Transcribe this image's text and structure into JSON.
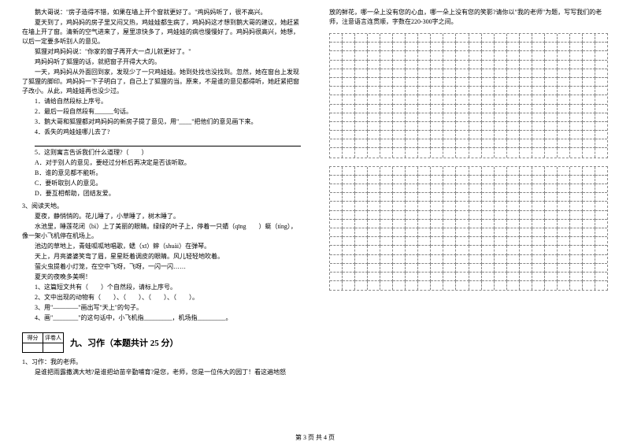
{
  "left": {
    "story": [
      "鹅大哥说：\"房子造得不错，如果在墙上开个窗就更好了。\"鸡妈妈听了，很不高兴。",
      "夏天到了，鸡妈妈的房子里又闷又热，鸡娃娃都生病了，鸡妈妈这才想到鹅大哥的建议，她赶紧在墙上开了窗。清新的空气进来了，屋里凉快多了，鸡娃娃的病也慢慢好了。鸡妈妈很高兴，她想，以后一定要多听别人的意见。",
      "狐狸对鸡妈妈说：\"你家的窗子再开大一点儿就更好了。\"",
      "鸡妈妈听了狐狸的话，就把窗子开得大大的。",
      "一天，鸡妈妈从外面回到家，发现少了一只鸡娃娃。她到处找也没找到。忽然，她在窗台上发现了狐狸的脚印。鸡妈妈一下子明白了，自己上了狐狸的当。原来，不是谁的意见都得听，她赶紧把窗子改小。从此，鸡娃娃再也没少过。"
    ],
    "questions1": [
      "1．请给自然段标上序号。",
      "2．最后一段自然段有______句话。",
      "3．鹅大哥和狐狸都对鸡妈妈的新房子提了意见，用\"____\"把他们的意见画下来。",
      "4．丢失的鸡娃娃哪儿去了?"
    ],
    "q5": "5．这则寓言告诉我们什么道理?（　　）",
    "options": [
      "A．对于别人的意见，要经过分析后再决定是否该听取。",
      "B．谁的意见都不能听。",
      "C．要听取别人的意见。",
      "D．要互相帮助，团结友爱。"
    ],
    "reading2_title": "3、阅读天地。",
    "reading2": [
      "夏夜，静悄悄的。花儿睡了，小草睡了，树木睡了。",
      "水池里，睡莲花闭（bì）上了美丽的眼睛。绿绿的叶子上，停着一只蜻（qīng　　）蜓（tíng），像一架小飞机停在机场上。",
      "池边的草地上，青蛙呱呱地唱歌，蟋（xī）蟀（shuài）在弹琴。",
      "天上，月亮婆婆笑弯了眉，星星眨着调皮的眼睛。风儿轻轻地吹着。",
      "萤火虫提着小灯笼，在空中飞呀，飞呀，一闪一闪……",
      "夏天的夜晚多美啊！"
    ],
    "questions2": [
      "1、这篇短文共有（　　）个自然段，请标上序号。",
      "2、文中出现的动物有（　　）、（　　）、（　　）、（　　）。",
      "3、用\"————\"画出写\"天上\"的句子。",
      "4、画\"________\"的这句话中，小飞机指_________，机场指_________。"
    ],
    "score_labels": [
      "得分",
      "评卷人"
    ],
    "section9": "九、习作（本题共计 25 分）",
    "writing_title": "1、习作：我的老师。",
    "writing_prompt": "是谁把雨露撒满大地?是谁把幼苗辛勤哺育?是您，老师，您是一位伟大的园丁！看这遍地怒"
  },
  "right": {
    "continuation": "放的鲜花，哪一朵上没有您的心血，哪一朵上没有您的笑影?请你以\"我的老师\"为题，写写我们的老师，注意语言连贯顺，字数在220-300字之间。"
  },
  "grid": {
    "cols": 22,
    "rows_block1": 14,
    "rows_block2": 14
  },
  "footer": "第 3 页  共 4 页"
}
